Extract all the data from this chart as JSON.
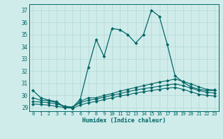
{
  "xlabel": "Humidex (Indice chaleur)",
  "bg_color": "#d0ecea",
  "line_color": "#006666",
  "grid_color": "#b0d8d4",
  "xlim": [
    -0.5,
    23.5
  ],
  "ylim": [
    28.7,
    37.5
  ],
  "xticks": [
    0,
    1,
    2,
    3,
    4,
    5,
    6,
    7,
    8,
    9,
    10,
    11,
    12,
    13,
    14,
    15,
    16,
    17,
    18,
    19,
    20,
    21,
    22,
    23
  ],
  "yticks": [
    29,
    30,
    31,
    32,
    33,
    34,
    35,
    36,
    37
  ],
  "line1_y": [
    30.4,
    29.8,
    29.6,
    29.5,
    29.0,
    29.0,
    29.7,
    32.3,
    34.6,
    33.2,
    35.5,
    35.4,
    35.0,
    34.3,
    35.0,
    37.0,
    36.5,
    34.2,
    31.6,
    31.1,
    30.7,
    30.5,
    30.4,
    30.4
  ],
  "line2_y": [
    29.8,
    29.6,
    29.55,
    29.4,
    29.1,
    29.0,
    29.5,
    29.8,
    29.8,
    30.0,
    30.15,
    30.35,
    30.5,
    30.65,
    30.8,
    30.95,
    31.1,
    31.2,
    31.35,
    31.15,
    30.95,
    30.7,
    30.5,
    30.45
  ],
  "line3_y": [
    29.5,
    29.45,
    29.4,
    29.3,
    29.1,
    29.05,
    29.4,
    29.6,
    29.7,
    29.85,
    30.0,
    30.15,
    30.3,
    30.45,
    30.55,
    30.65,
    30.75,
    30.85,
    30.95,
    30.8,
    30.6,
    30.4,
    30.25,
    30.2
  ],
  "line4_y": [
    29.3,
    29.25,
    29.2,
    29.1,
    29.0,
    28.95,
    29.2,
    29.4,
    29.5,
    29.65,
    29.8,
    29.95,
    30.05,
    30.2,
    30.3,
    30.4,
    30.5,
    30.6,
    30.65,
    30.5,
    30.3,
    30.1,
    30.0,
    29.95
  ]
}
